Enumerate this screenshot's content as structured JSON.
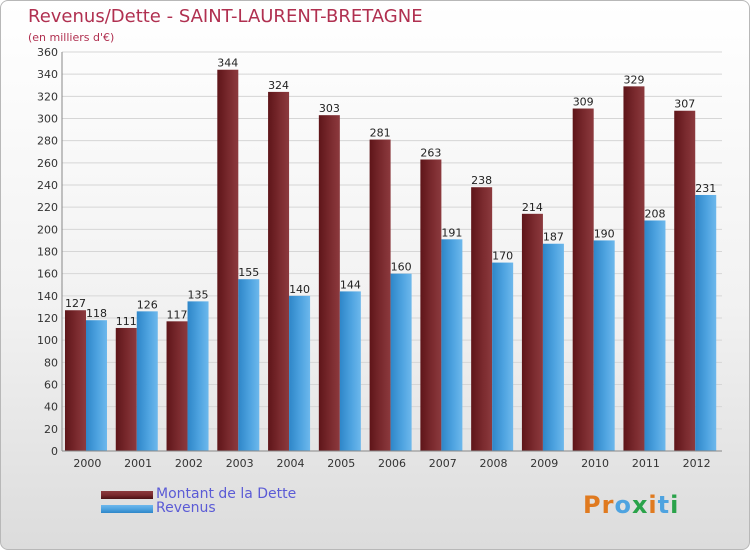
{
  "title": "Revenus/Dette - SAINT-LAURENT-BRETAGNE",
  "subtitle": "(en milliers d'€)",
  "colors": {
    "dette": "#7a2a2e",
    "revenus": "#4ea3e0",
    "title": "#b03050",
    "legend_text": "#5b5bd6"
  },
  "chart_data": {
    "type": "bar",
    "categories": [
      "2000",
      "2001",
      "2002",
      "2003",
      "2004",
      "2005",
      "2006",
      "2007",
      "2008",
      "2009",
      "2010",
      "2011",
      "2012"
    ],
    "series": [
      {
        "name": "Montant de la Dette",
        "values": [
          127,
          111,
          117,
          344,
          324,
          303,
          281,
          263,
          238,
          214,
          309,
          329,
          307
        ]
      },
      {
        "name": "Revenus",
        "values": [
          118,
          126,
          135,
          155,
          140,
          144,
          160,
          191,
          170,
          187,
          190,
          208,
          231
        ]
      }
    ],
    "ylim": [
      0,
      360
    ],
    "yticks": [
      0,
      20,
      40,
      60,
      80,
      100,
      120,
      140,
      160,
      180,
      200,
      220,
      240,
      260,
      280,
      300,
      320,
      340,
      360
    ],
    "grid": true,
    "legend_position": "bottom-left"
  },
  "logo": {
    "letters": [
      "P",
      "r",
      "o",
      "x",
      "i",
      "t",
      "i"
    ],
    "colors": [
      "#e07a1f",
      "#e07a1f",
      "#4ea3e0",
      "#2aa34a",
      "#e07a1f",
      "#4ea3e0",
      "#2aa34a"
    ]
  }
}
